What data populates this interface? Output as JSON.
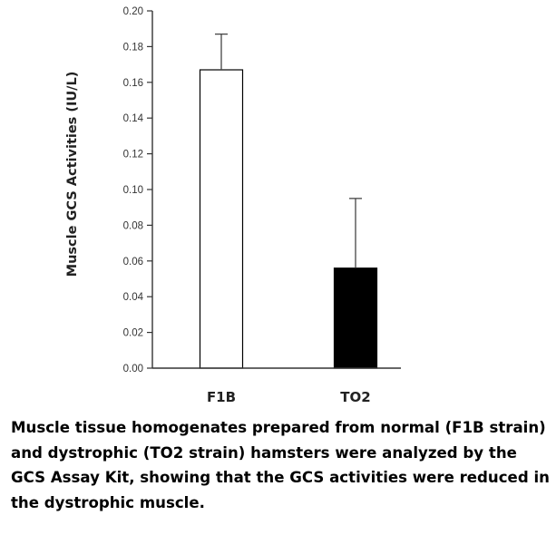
{
  "chart_data": {
    "type": "bar",
    "categories": [
      "F1B",
      "TO2"
    ],
    "values": [
      0.167,
      0.056
    ],
    "errors": [
      0.02,
      0.039
    ],
    "bar_colors": [
      "#ffffff",
      "#000000"
    ],
    "bar_edge_color": "#000000",
    "ylabel": "Muscle GCS Activities (IU/L)",
    "xlabel": "",
    "title": "",
    "ylim": [
      0,
      0.2
    ],
    "yticks": [
      "0.00",
      "0.02",
      "0.04",
      "0.06",
      "0.08",
      "0.10",
      "0.12",
      "0.14",
      "0.16",
      "0.18",
      "0.20"
    ],
    "grid": false,
    "legend": "none"
  },
  "caption": "Muscle tissue homogenates prepared from normal (F1B strain) and dystrophic (TO2 strain) hamsters were analyzed by the GCS Assay Kit, showing that the GCS activities were reduced in the dystrophic muscle."
}
